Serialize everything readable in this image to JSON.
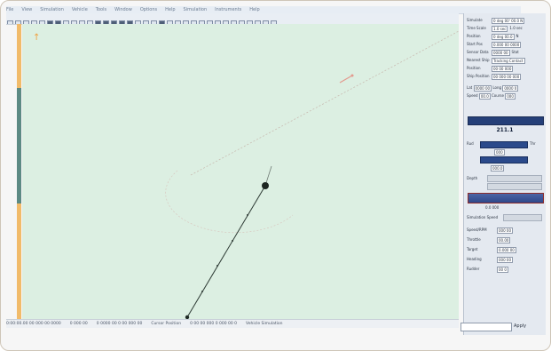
{
  "menu": {
    "items": [
      "File",
      "View",
      "Simulation",
      "Vehicle",
      "Tools",
      "Window",
      "Options",
      "Help",
      "Simulation",
      "Instruments",
      "Help"
    ]
  },
  "toolbar": {
    "button_count": 34,
    "dark_buttons": [
      5,
      6,
      11,
      12,
      13,
      14,
      15,
      19
    ]
  },
  "map": {
    "background_color": "#dcefe2",
    "trajectory_color": "#2d3a34",
    "top_marker": "↑",
    "range_circle_color": "#c5b7b0",
    "track_line_color": "#c9bdb3"
  },
  "panel": {
    "rows": [
      {
        "label": "Simulate",
        "value": "0 deg 00' 00.0 N",
        "extra": ""
      },
      {
        "label": "Time Scale",
        "value": "1.0 sec",
        "extra": "1.0 sec"
      },
      {
        "label": "Position",
        "value": "0 deg 00.0",
        "extra": "N"
      },
      {
        "label": "Start Pos",
        "value": "0.000 00 0000",
        "extra": ""
      },
      {
        "label": "Sensor Data",
        "value": "0000 00",
        "extra": "Stat"
      },
      {
        "label": "Nearest Ship",
        "value": "Tracking Contact",
        "extra": ""
      },
      {
        "label": "Position",
        "value": "00 00 000",
        "extra": ""
      },
      {
        "label": "Ship Position",
        "value": "00 000 00 000",
        "extra": ""
      }
    ],
    "speed_block": [
      {
        "label": "Lat",
        "value": "0000 00"
      },
      {
        "label": "Long",
        "value": "0000 0"
      },
      {
        "label": "Speed",
        "value": "00.0"
      },
      {
        "label": "Course",
        "value": "000"
      }
    ],
    "heading_readout": "211.1",
    "left_label": "Rud",
    "right_label": "Thr",
    "readout_a": "000",
    "readout_b": "000.0",
    "depth_label": "Depth",
    "bottom_value": "0.0 000",
    "lower_label": "Simulation Speed",
    "lower_rows": [
      {
        "label": "Speed/RPM",
        "value": "000 00"
      },
      {
        "label": "Throttle",
        "value": "00.00"
      },
      {
        "label": "Target",
        "value": "0.000 00"
      },
      {
        "label": "Heading",
        "value": "000 00"
      },
      {
        "label": "Rudder",
        "value": "00 0"
      }
    ],
    "apply_label": "Apply"
  },
  "statusbar": {
    "segments": [
      "0:00:00.00  00 000 00 0000",
      "0 000 00",
      "0 0000 00 0  00 000 00",
      "Cursor Position",
      "0 00 00 000 0 000 00 0",
      "Vehicle Simulation"
    ]
  }
}
